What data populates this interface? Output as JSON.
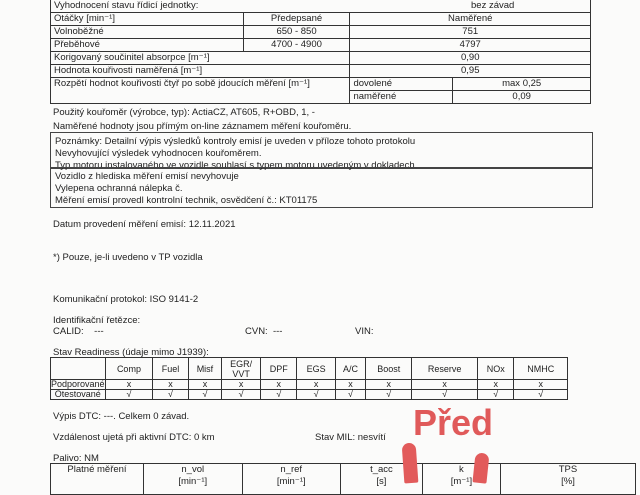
{
  "top_row": {
    "label": "Vyhodnocení stavu řídicí jednotky:",
    "value": "bez závad"
  },
  "rpm_table": {
    "header": [
      "Otáčky [min⁻¹]",
      "Předepsané",
      "Naměřené"
    ],
    "rows": [
      [
        "Volnoběžné",
        "650 - 850",
        "751"
      ],
      [
        "Přeběhové",
        "4700 - 4900",
        "4797"
      ]
    ],
    "korig_label": "Korigovaný součinitel absorpce [m⁻¹]",
    "korig_value": "0,90",
    "hodnota_label": "Hodnota kouřivosti naměřená [m⁻¹]",
    "hodnota_value": "0,95",
    "rozpeti_label": "Rozpětí hodnot kouřivosti čtyř po sobě jdoucích měření [m⁻¹]",
    "dovolene_label": "dovolené",
    "dovolene_value": "max 0,25",
    "namerene_label": "naměřené",
    "namerene_value": "0,09"
  },
  "meter_line": "Použitý kouřoměr (výrobce, typ): ActiaCZ, AT605, R+OBD, 1, -",
  "online_line": "Naměřené hodnoty jsou přímým on-line záznamem měření kouřoměru.",
  "notes": [
    "Poznámky: Detailní výpis výsledků kontroly emisí je uveden v příloze tohoto protokolu",
    "Nevyhovující výsledek vyhodnocen kouřoměrem.",
    "Typ motoru instalovaného ve vozidle souhlasí s typem motoru uvedeným v dokladech"
  ],
  "result": [
    "Vozidlo z hlediska měření emisí nevyhovuje",
    "Vylepena ochranná nálepka č.",
    "Měření emisí provedl kontrolní technik, osvědčení č.: KT01175"
  ],
  "date_line": "Datum provedení měření emisí: 12.11.2021",
  "footnote": "*) Pouze, je-li uvedeno v TP vozidla",
  "protocol": "Komunikační protokol: ISO 9141-2",
  "ident_title": "Identifikační řetězce:",
  "calid": "CALID:    ---",
  "cvn": "CVN:  ---",
  "vin": "VIN:",
  "readiness_title": "Stav Readiness (údaje mimo J1939):",
  "readiness": {
    "columns": [
      "Comp",
      "Fuel",
      "Misf",
      "EGR/ VVT",
      "DPF",
      "EGS",
      "A/C",
      "Boost",
      "Reserve",
      "NOx",
      "NMHC"
    ],
    "rows": [
      {
        "label": "Podporované",
        "values": [
          "x",
          "x",
          "x",
          "x",
          "x",
          "x",
          "x",
          "x",
          "x",
          "x",
          "x"
        ]
      },
      {
        "label": "Otestované",
        "values": [
          "√",
          "√",
          "√",
          "√",
          "√",
          "√",
          "√",
          "√",
          "√",
          "√",
          "√"
        ]
      }
    ]
  },
  "dtc": "Výpis DTC: ---. Celkem 0 závad.",
  "distance": "Vzdálenost ujetá při aktivní DTC: 0 km",
  "mil": "Stav MIL: nesvítí",
  "fuel": "Palivo: NM",
  "bottom_table": {
    "headers": [
      "Platné měření",
      "n_vol",
      "n_ref",
      "t_acc",
      "k",
      "TPS"
    ],
    "units": [
      "",
      "[min⁻¹]",
      "[min⁻¹]",
      "[s]",
      "[m⁻¹]",
      "[%]"
    ]
  },
  "overlay": {
    "text": "Před",
    "color": "#e05a5a"
  }
}
